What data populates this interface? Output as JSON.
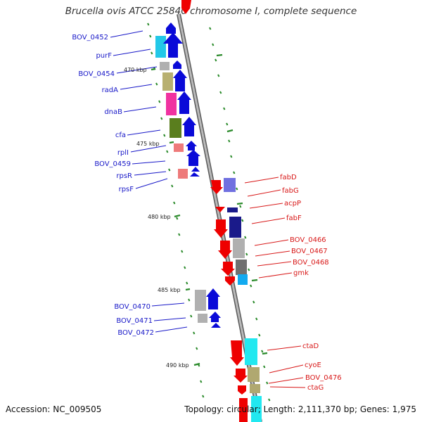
{
  "title": "Brucella ovis ATCC 25840 chromosome I, complete sequence",
  "footer": {
    "accession_label": "Accession:",
    "accession": "NC_009505",
    "topology_label": "Topology:",
    "topology": "circular",
    "length_label": "Length:",
    "length": "2,111,370 bp",
    "genes_label": "Genes:",
    "genes": "1,975"
  },
  "colors": {
    "backbone": "#8c8c8c",
    "tick": "#2a8a2a",
    "left_label": "#1818c8",
    "right_label": "#d81818"
  },
  "kbp_ticks": [
    "470 kbp",
    "475 kbp",
    "480 kbp",
    "485 kbp",
    "490 kbp"
  ],
  "genes_left": [
    "BOV_0452",
    "purF",
    "BOV_0454",
    "radA",
    "dnaB",
    "cfa",
    "rplI",
    "BOV_0459",
    "rpsR",
    "rpsF",
    "BOV_0470",
    "BOV_0471",
    "BOV_0472"
  ],
  "genes_right": [
    "fabD",
    "fabG",
    "acpP",
    "fabF",
    "BOV_0466",
    "BOV_0467",
    "BOV_0468",
    "gmk",
    "ctaD",
    "cyoE",
    "BOV_0476",
    "ctaG"
  ]
}
